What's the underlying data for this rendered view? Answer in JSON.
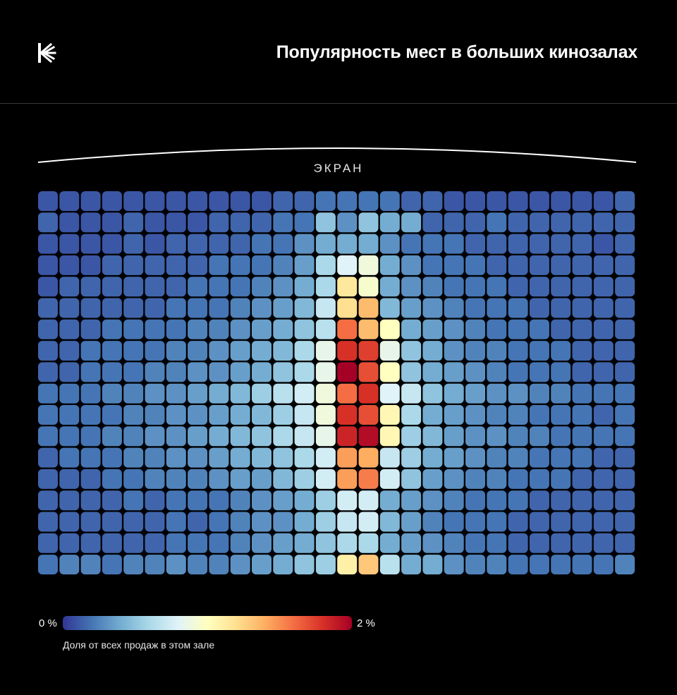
{
  "header": {
    "title": "Популярность мест в больших кинозалах",
    "logo_icon": "k-logo-icon"
  },
  "screen_label": "ЭКРАН",
  "legend": {
    "min_label": "0 %",
    "max_label": "2 %",
    "caption": "Доля от всех продаж в этом зале",
    "gradient": [
      "#313695",
      "#4575b4",
      "#74add1",
      "#abd9e9",
      "#e0f3f8",
      "#ffffbf",
      "#fee090",
      "#fdae61",
      "#f46d43",
      "#d73027",
      "#a50026"
    ]
  },
  "chart_data": {
    "type": "heatmap",
    "rows": 18,
    "cols": 28,
    "value_unit": "%",
    "scale": [
      0,
      2
    ],
    "values": [
      [
        0.1,
        0.1,
        0.1,
        0.1,
        0.1,
        0.1,
        0.1,
        0.1,
        0.1,
        0.1,
        0.1,
        0.15,
        0.15,
        0.2,
        0.2,
        0.2,
        0.2,
        0.15,
        0.15,
        0.1,
        0.1,
        0.1,
        0.1,
        0.1,
        0.1,
        0.1,
        0.1,
        0.15
      ],
      [
        0.15,
        0.1,
        0.1,
        0.1,
        0.15,
        0.1,
        0.1,
        0.1,
        0.15,
        0.15,
        0.15,
        0.2,
        0.2,
        0.5,
        0.3,
        0.5,
        0.4,
        0.4,
        0.15,
        0.15,
        0.15,
        0.2,
        0.15,
        0.15,
        0.15,
        0.15,
        0.15,
        0.15
      ],
      [
        0.1,
        0.1,
        0.1,
        0.1,
        0.15,
        0.1,
        0.15,
        0.15,
        0.15,
        0.15,
        0.2,
        0.2,
        0.3,
        0.4,
        0.4,
        0.4,
        0.3,
        0.2,
        0.2,
        0.2,
        0.15,
        0.15,
        0.15,
        0.15,
        0.15,
        0.15,
        0.1,
        0.15
      ],
      [
        0.1,
        0.1,
        0.1,
        0.15,
        0.15,
        0.15,
        0.15,
        0.15,
        0.2,
        0.2,
        0.2,
        0.25,
        0.35,
        0.6,
        0.8,
        0.9,
        0.4,
        0.3,
        0.2,
        0.2,
        0.2,
        0.15,
        0.15,
        0.15,
        0.15,
        0.15,
        0.15,
        0.15
      ],
      [
        0.1,
        0.15,
        0.15,
        0.15,
        0.15,
        0.15,
        0.15,
        0.2,
        0.2,
        0.2,
        0.25,
        0.3,
        0.4,
        0.6,
        1.15,
        0.95,
        0.4,
        0.3,
        0.25,
        0.2,
        0.2,
        0.2,
        0.15,
        0.15,
        0.15,
        0.15,
        0.15,
        0.15
      ],
      [
        0.15,
        0.15,
        0.15,
        0.15,
        0.15,
        0.15,
        0.2,
        0.2,
        0.2,
        0.25,
        0.3,
        0.35,
        0.45,
        0.7,
        1.2,
        1.35,
        0.45,
        0.35,
        0.3,
        0.25,
        0.2,
        0.2,
        0.2,
        0.15,
        0.15,
        0.15,
        0.15,
        0.15
      ],
      [
        0.15,
        0.15,
        0.15,
        0.2,
        0.2,
        0.2,
        0.2,
        0.25,
        0.25,
        0.3,
        0.35,
        0.4,
        0.5,
        0.65,
        1.6,
        1.35,
        1.0,
        0.4,
        0.35,
        0.3,
        0.25,
        0.2,
        0.2,
        0.2,
        0.15,
        0.15,
        0.15,
        0.15
      ],
      [
        0.15,
        0.15,
        0.2,
        0.2,
        0.2,
        0.2,
        0.25,
        0.25,
        0.3,
        0.35,
        0.4,
        0.45,
        0.6,
        0.85,
        1.8,
        1.75,
        0.85,
        0.5,
        0.4,
        0.3,
        0.25,
        0.25,
        0.2,
        0.2,
        0.2,
        0.15,
        0.15,
        0.15
      ],
      [
        0.15,
        0.15,
        0.2,
        0.2,
        0.2,
        0.25,
        0.25,
        0.3,
        0.3,
        0.35,
        0.4,
        0.5,
        0.6,
        0.85,
        2.0,
        1.7,
        1.0,
        0.5,
        0.4,
        0.35,
        0.3,
        0.25,
        0.2,
        0.2,
        0.2,
        0.15,
        0.15,
        0.15
      ],
      [
        0.2,
        0.2,
        0.2,
        0.25,
        0.25,
        0.3,
        0.3,
        0.35,
        0.4,
        0.45,
        0.55,
        0.65,
        0.75,
        0.9,
        1.6,
        1.8,
        0.8,
        0.7,
        0.5,
        0.4,
        0.35,
        0.3,
        0.3,
        0.25,
        0.25,
        0.2,
        0.2,
        0.2
      ],
      [
        0.2,
        0.2,
        0.2,
        0.2,
        0.25,
        0.25,
        0.3,
        0.3,
        0.35,
        0.4,
        0.45,
        0.55,
        0.7,
        0.9,
        1.8,
        1.7,
        1.05,
        0.6,
        0.4,
        0.35,
        0.3,
        0.25,
        0.25,
        0.2,
        0.2,
        0.2,
        0.15,
        0.2
      ],
      [
        0.2,
        0.2,
        0.2,
        0.25,
        0.25,
        0.3,
        0.3,
        0.35,
        0.4,
        0.45,
        0.5,
        0.6,
        0.7,
        0.85,
        1.85,
        1.95,
        1.05,
        0.55,
        0.45,
        0.35,
        0.3,
        0.3,
        0.25,
        0.25,
        0.2,
        0.2,
        0.2,
        0.2
      ],
      [
        0.15,
        0.2,
        0.2,
        0.2,
        0.25,
        0.25,
        0.3,
        0.3,
        0.35,
        0.4,
        0.45,
        0.5,
        0.6,
        0.75,
        1.45,
        1.4,
        0.7,
        0.55,
        0.4,
        0.35,
        0.3,
        0.25,
        0.25,
        0.2,
        0.2,
        0.2,
        0.15,
        0.15
      ],
      [
        0.15,
        0.15,
        0.15,
        0.2,
        0.2,
        0.25,
        0.25,
        0.25,
        0.3,
        0.35,
        0.35,
        0.45,
        0.55,
        0.75,
        1.45,
        1.55,
        0.75,
        0.5,
        0.35,
        0.3,
        0.25,
        0.25,
        0.2,
        0.2,
        0.2,
        0.15,
        0.15,
        0.15
      ],
      [
        0.15,
        0.15,
        0.15,
        0.15,
        0.2,
        0.15,
        0.2,
        0.2,
        0.2,
        0.25,
        0.3,
        0.35,
        0.4,
        0.55,
        0.75,
        0.75,
        0.4,
        0.35,
        0.3,
        0.25,
        0.2,
        0.2,
        0.2,
        0.15,
        0.15,
        0.15,
        0.15,
        0.15
      ],
      [
        0.15,
        0.15,
        0.15,
        0.15,
        0.15,
        0.15,
        0.2,
        0.15,
        0.2,
        0.25,
        0.3,
        0.3,
        0.4,
        0.55,
        0.7,
        0.75,
        0.45,
        0.35,
        0.25,
        0.2,
        0.2,
        0.2,
        0.15,
        0.15,
        0.15,
        0.15,
        0.15,
        0.15
      ],
      [
        0.15,
        0.15,
        0.15,
        0.15,
        0.15,
        0.15,
        0.2,
        0.2,
        0.2,
        0.25,
        0.3,
        0.35,
        0.4,
        0.5,
        0.6,
        0.6,
        0.4,
        0.35,
        0.3,
        0.25,
        0.2,
        0.2,
        0.15,
        0.15,
        0.15,
        0.15,
        0.15,
        0.15
      ],
      [
        0.2,
        0.25,
        0.25,
        0.2,
        0.25,
        0.25,
        0.3,
        0.25,
        0.25,
        0.3,
        0.35,
        0.4,
        0.5,
        0.55,
        1.1,
        1.3,
        0.65,
        0.4,
        0.4,
        0.3,
        0.25,
        0.25,
        0.2,
        0.2,
        0.2,
        0.2,
        0.2,
        0.25
      ]
    ]
  }
}
